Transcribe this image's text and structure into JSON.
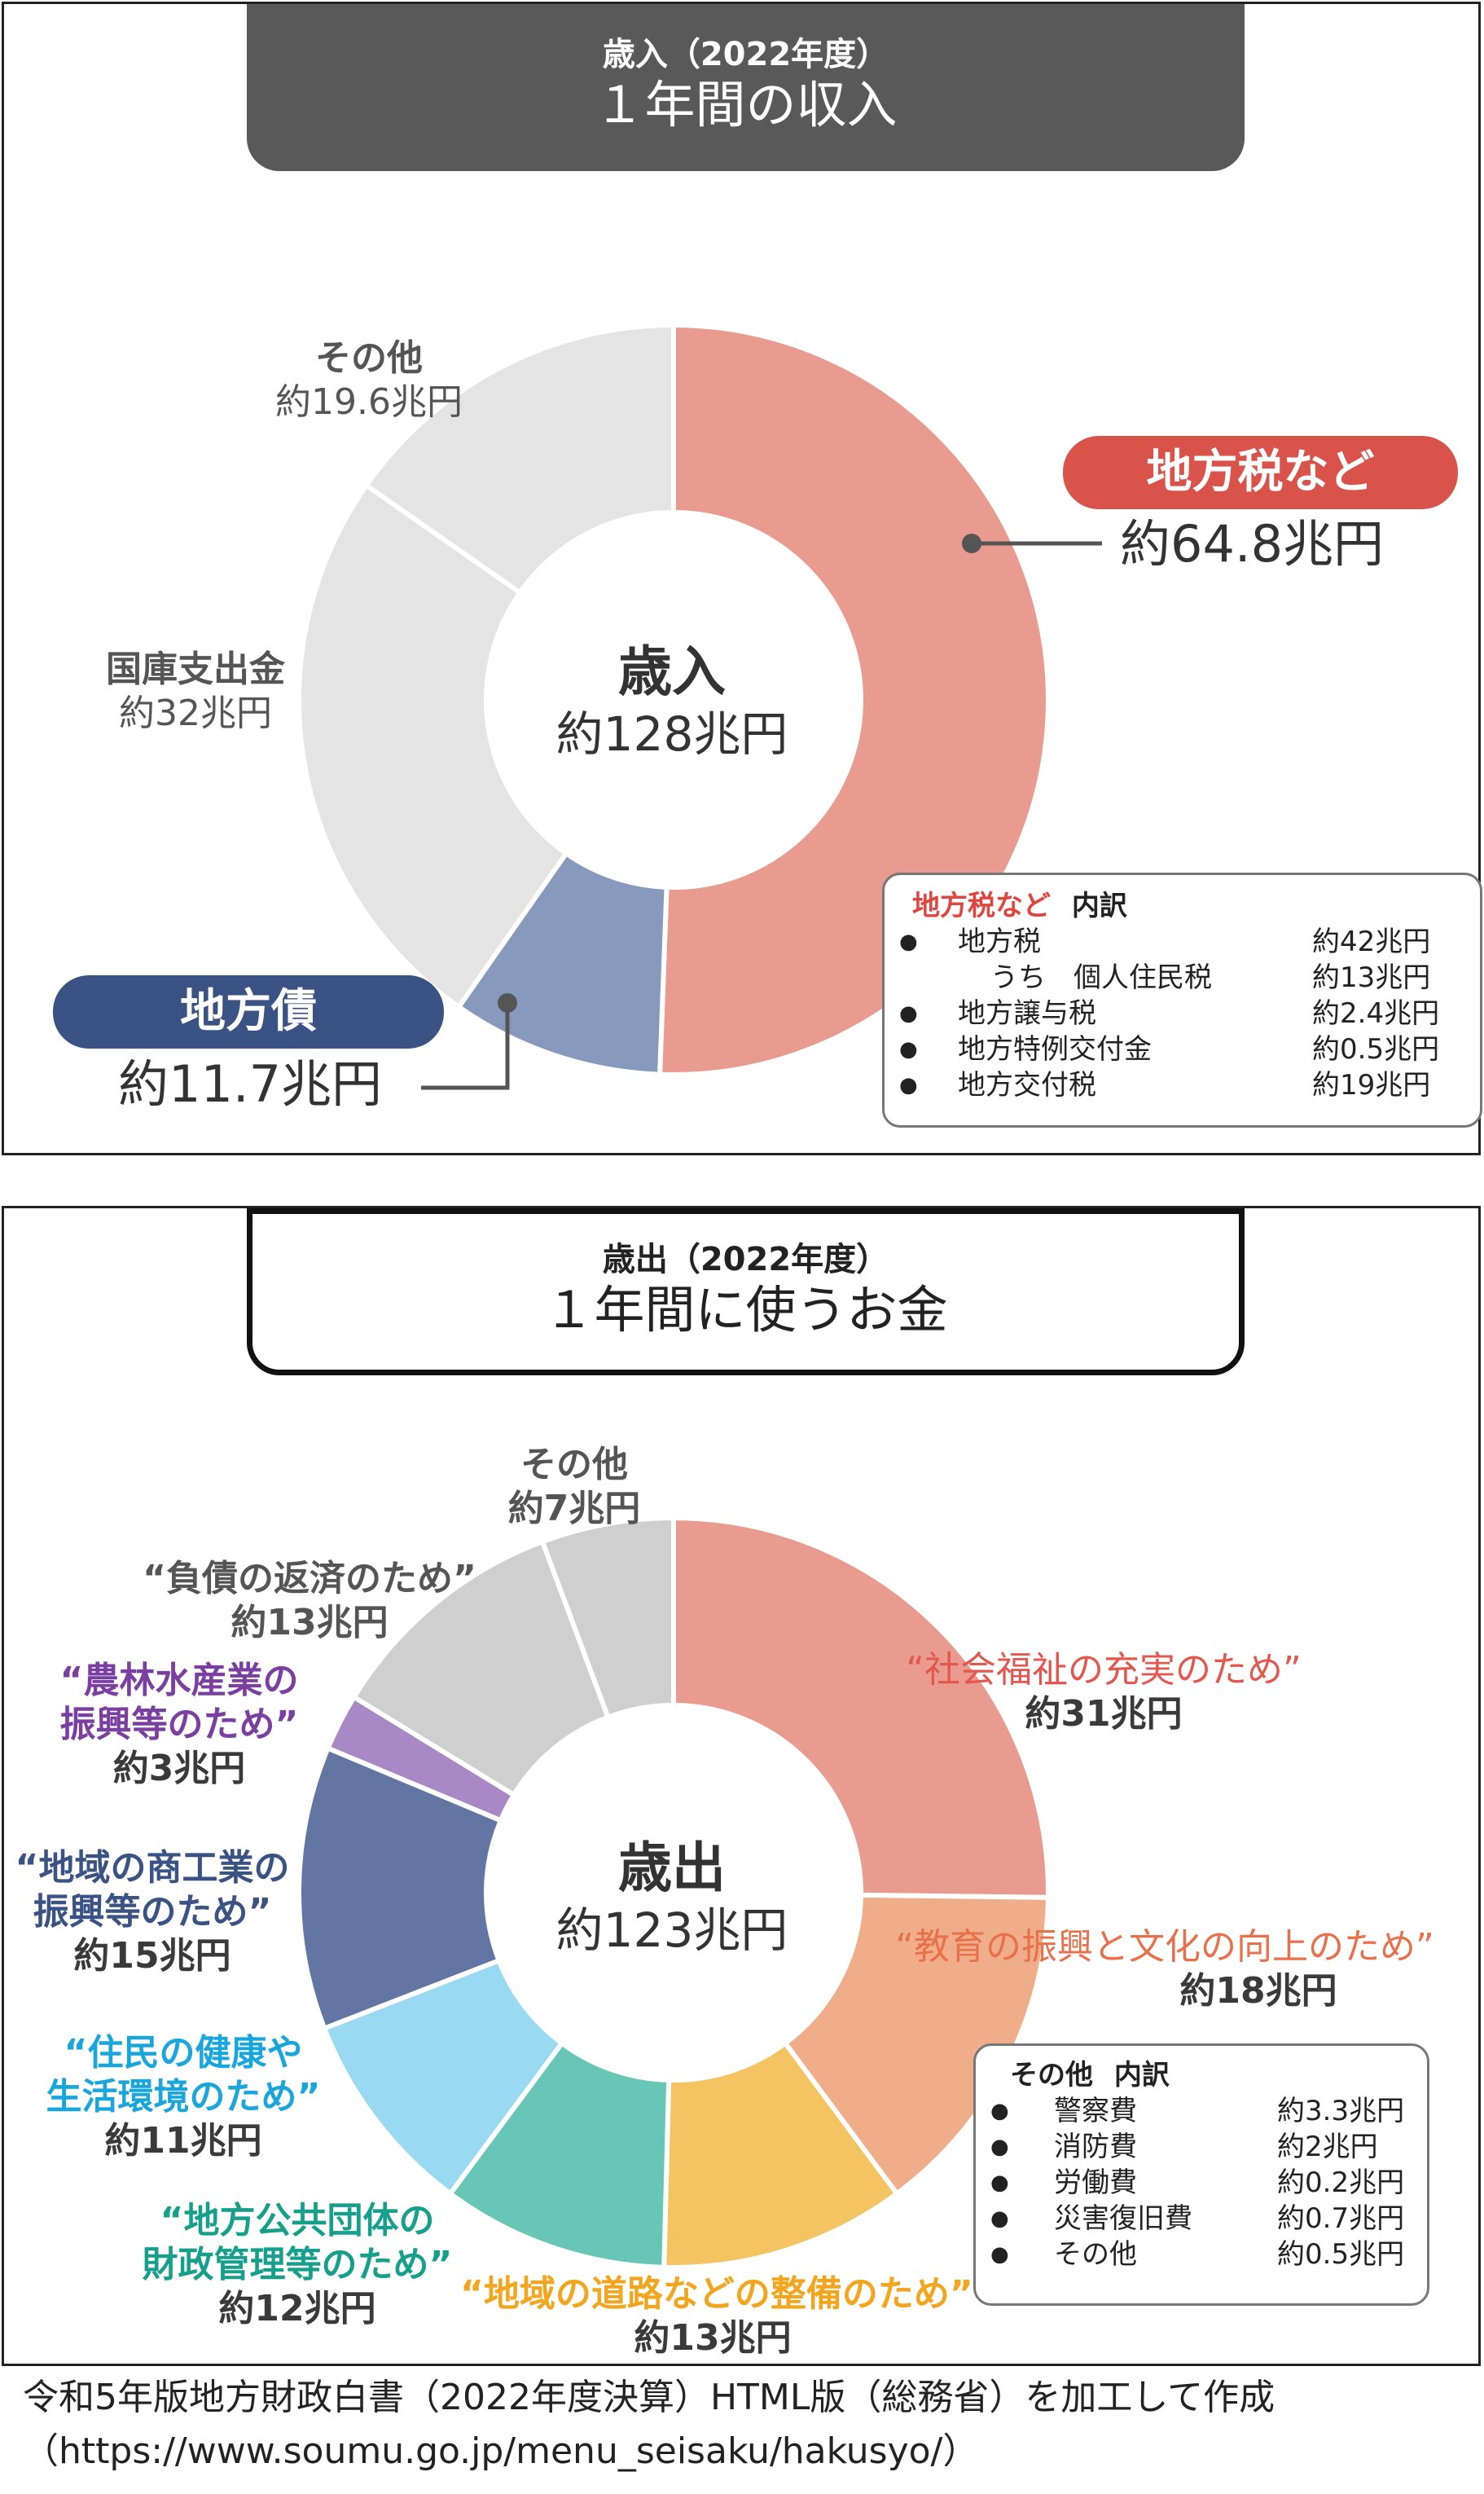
{
  "revenue": {
    "title_sub": "歳入（2022年度）",
    "title_main": "１年間の収入",
    "center_name": "歳入",
    "center_value": "約128兆円",
    "chart_data": {
      "type": "pie",
      "unit": "兆円",
      "total": 128,
      "slices": [
        {
          "name": "地方税など",
          "value": 64.8,
          "label": "約64.8兆円",
          "color": "#e99b8f"
        },
        {
          "name": "地方債",
          "value": 11.7,
          "label": "約11.7兆円",
          "color": "#8799bc"
        },
        {
          "name": "国庫支出金",
          "value": 32,
          "label": "約32兆円",
          "color": "#e4e4e4"
        },
        {
          "name": "その他",
          "value": 19.6,
          "label": "約19.6兆円",
          "color": "#e4e4e4"
        }
      ]
    },
    "highlight_colors": {
      "local_tax": "#d9534a",
      "local_bond": "#3b5384"
    },
    "breakdown": {
      "title_red": "地方税など",
      "title_black": "内訳",
      "rows": [
        {
          "bullet": "●",
          "name": "地方税",
          "value": "約42兆円"
        },
        {
          "bullet": "",
          "name": "うち　個人住民税",
          "value": "約13兆円"
        },
        {
          "bullet": "●",
          "name": "地方譲与税",
          "value": "約2.4兆円"
        },
        {
          "bullet": "●",
          "name": "地方特例交付金",
          "value": "約0.5兆円"
        },
        {
          "bullet": "●",
          "name": "地方交付税",
          "value": "約19兆円"
        }
      ]
    }
  },
  "expense": {
    "title_sub": "歳出（2022年度）",
    "title_main": "１年間に使うお金",
    "center_name": "歳出",
    "center_value": "約123兆円",
    "chart_data": {
      "type": "pie",
      "unit": "兆円",
      "total": 123,
      "slices": [
        {
          "name": "“社会福祉の充実のため”",
          "value": 31,
          "label": "約31兆円",
          "color": "#e99b8f",
          "label_color": "#e4574f"
        },
        {
          "name": "“教育の振興と文化の向上のため”",
          "value": 18,
          "label": "約18兆円",
          "color": "#efae89",
          "label_color": "#e8704b"
        },
        {
          "name": "“地域の道路などの整備のため”",
          "value": 13,
          "label": "約13兆円",
          "color": "#f4c462",
          "label_color": "#f2a51d"
        },
        {
          "name": "“地方公共団体の財政管理等のため”",
          "value": 12,
          "label": "約12兆円",
          "color": "#68c6b6",
          "label_color": "#16a08c"
        },
        {
          "name": "“住民の健康や生活環境のため”",
          "value": 11,
          "label": "約11兆円",
          "color": "#9ad9f2",
          "label_color": "#19a6dc"
        },
        {
          "name": "“地域の商工業の振興等のため”",
          "value": 15,
          "label": "約15兆円",
          "color": "#6275a3",
          "label_color": "#3b5384"
        },
        {
          "name": "“農林水産業の振興等のため”",
          "value": 3,
          "label": "約3兆円",
          "color": "#a889c5",
          "label_color": "#7a3fa0"
        },
        {
          "name": "“負債の返済のため”",
          "value": 13,
          "label": "約13兆円",
          "color": "#d0cfd0",
          "label_color": "#555555"
        },
        {
          "name": "その他",
          "value": 7,
          "label": "約7兆円",
          "color": "#d0cfd0",
          "label_color": "#555555"
        }
      ]
    },
    "label_lines": {
      "welfare": "“社会福祉の充実のため”",
      "education": "“教育の振興と文化の向上のため”",
      "roads": "“地域の道路などの整備のため”",
      "finance_1": "“地方公共団体の",
      "finance_2": "財政管理等のため”",
      "health_1": "“住民の健康や",
      "health_2": "生活環境のため”",
      "commerce_1": "“地域の商工業の",
      "commerce_2": "振興等のため”",
      "agri_1": "“農林水産業の",
      "agri_2": "振興等のため”",
      "debt": "“負債の返済のため”",
      "other": "その他"
    },
    "breakdown": {
      "title": "その他",
      "title_suffix": "内訳",
      "rows": [
        {
          "bullet": "●",
          "name": "警察費",
          "value": "約3.3兆円"
        },
        {
          "bullet": "●",
          "name": "消防費",
          "value": "約2兆円"
        },
        {
          "bullet": "●",
          "name": "労働費",
          "value": "約0.2兆円"
        },
        {
          "bullet": "●",
          "name": "災害復旧費",
          "value": "約0.7兆円"
        },
        {
          "bullet": "●",
          "name": "その他",
          "value": "約0.5兆円"
        }
      ]
    }
  },
  "source": {
    "line1": "令和5年版地方財政白書（2022年度決算）HTML版（総務省）を加工して作成",
    "line2": "（https://www.soumu.go.jp/menu_seisaku/hakusyo/）"
  }
}
